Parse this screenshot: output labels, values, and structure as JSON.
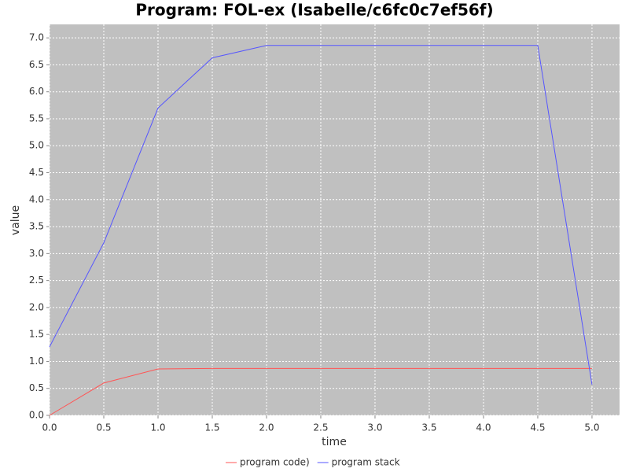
{
  "chart_data": {
    "type": "line",
    "title": "Program: FOL-ex (Isabelle/c6fc0c7ef56f)",
    "x_label": "time",
    "y_label": "value",
    "x": [
      0,
      0.5,
      1,
      1.5,
      2,
      2.5,
      3,
      3.5,
      4,
      4.5,
      5
    ],
    "series": [
      {
        "name": "program code)",
        "color": "#ff5555",
        "values": [
          0.0,
          0.6,
          0.86,
          0.87,
          0.87,
          0.87,
          0.87,
          0.87,
          0.87,
          0.87,
          0.87
        ]
      },
      {
        "name": "program stack",
        "color": "#5555ff",
        "values": [
          1.27,
          3.2,
          5.7,
          6.63,
          6.86,
          6.86,
          6.86,
          6.86,
          6.86,
          6.86,
          0.57
        ]
      }
    ],
    "xlim": [
      0,
      5.254
    ],
    "ylim": [
      0,
      7.25
    ],
    "xticks": [
      {
        "value": 0,
        "label": "0.0"
      },
      0.5,
      {
        "value": 1,
        "label": "1.0"
      },
      1.5,
      {
        "value": 2,
        "label": "2.0"
      },
      2.5,
      {
        "value": 3,
        "label": "3.0"
      },
      3.5,
      {
        "value": 4,
        "label": "4.0"
      },
      4.5,
      {
        "value": 5,
        "label": "5.0"
      }
    ],
    "yticks": [
      {
        "value": 0,
        "label": "0.0"
      },
      0.5,
      {
        "value": 1,
        "label": "1.0"
      },
      1.5,
      {
        "value": 2,
        "label": "2.0"
      },
      2.5,
      {
        "value": 3,
        "label": "3.0"
      },
      3.5,
      {
        "value": 4,
        "label": "4.0"
      },
      4.5,
      {
        "value": 5,
        "label": "5.0"
      },
      5.5,
      {
        "value": 6,
        "label": "6.0"
      },
      6.5,
      {
        "value": 7,
        "label": "7.0"
      }
    ],
    "grid": true,
    "legend": "bottom"
  }
}
